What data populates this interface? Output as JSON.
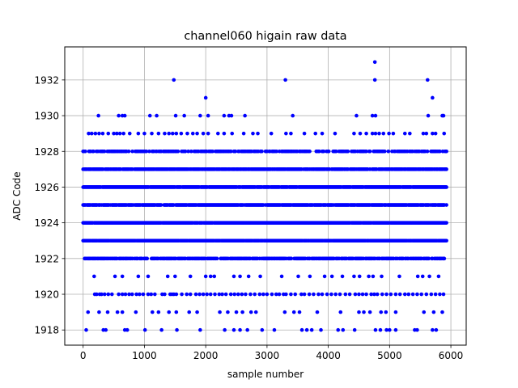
{
  "chart_data": {
    "type": "scatter",
    "title": "channel060 higain raw data",
    "xlabel": "sample number",
    "ylabel": "ADC Code",
    "xlim": [
      -300,
      6250
    ],
    "ylim": [
      1917.15,
      1933.85
    ],
    "x_ticks": [
      0,
      1000,
      2000,
      3000,
      4000,
      5000,
      6000
    ],
    "y_ticks": [
      1918,
      1920,
      1922,
      1924,
      1926,
      1928,
      1930,
      1932
    ],
    "grid": true,
    "marker_color": "#0000ff",
    "x_range": [
      0,
      5930
    ],
    "dense_levels": [
      {
        "y": 1922,
        "density": 0.7
      },
      {
        "y": 1923,
        "density": 0.95
      },
      {
        "y": 1924,
        "density": 0.98
      },
      {
        "y": 1925,
        "density": 0.92
      },
      {
        "y": 1926,
        "density": 0.96
      },
      {
        "y": 1927,
        "density": 0.85
      },
      {
        "y": 1928,
        "density": 0.55
      }
    ],
    "sparse_points": [
      {
        "y": 1918,
        "x": [
          50,
          330,
          370,
          680,
          720,
          1010,
          1280,
          1530,
          1910,
          2310,
          2460,
          2560,
          2680,
          2920,
          3120,
          3570,
          3650,
          3730,
          3880,
          4160,
          4240,
          4430,
          4770,
          4850,
          4950,
          5000,
          5100,
          5410,
          5450,
          5700,
          5760
        ]
      },
      {
        "y": 1919,
        "x": [
          80,
          260,
          400,
          560,
          640,
          860,
          1130,
          1230,
          1400,
          1520,
          1730,
          1860,
          2230,
          2360,
          2500,
          2600,
          2740,
          2820,
          3290,
          3440,
          3530,
          3820,
          4200,
          4500,
          4580,
          4680,
          4860,
          4940,
          5100,
          5560,
          5720,
          5860
        ]
      },
      {
        "y": 1920,
        "x": [
          190,
          220,
          270,
          300,
          350,
          410,
          470,
          580,
          640,
          690,
          750,
          800,
          870,
          920,
          980,
          1060,
          1110,
          1170,
          1290,
          1330,
          1420,
          1450,
          1480,
          1520,
          1610,
          1690,
          1750,
          1840,
          1900,
          1960,
          2020,
          2080,
          2150,
          2220,
          2270,
          2330,
          2410,
          2470,
          2530,
          2590,
          2650,
          2730,
          2800,
          2880,
          2940,
          3000,
          3080,
          3150,
          3200,
          3270,
          3310,
          3390,
          3460,
          3560,
          3610,
          3690,
          3760,
          3840,
          3900,
          3980,
          4050,
          4120,
          4190,
          4280,
          4350,
          4440,
          4500,
          4560,
          4620,
          4700,
          4750,
          4800,
          4880,
          4950,
          5020,
          5100,
          5170,
          5250,
          5310,
          5380,
          5450,
          5520,
          5600,
          5680,
          5750,
          5820,
          5880
        ]
      },
      {
        "y": 1921,
        "x": [
          180,
          520,
          640,
          900,
          1060,
          1380,
          1500,
          1750,
          2000,
          2080,
          2140,
          2460,
          2560,
          2700,
          2890,
          3240,
          3510,
          3700,
          3940,
          4060,
          4230,
          4420,
          4510,
          4660,
          4730,
          4870,
          5160,
          5460,
          5540,
          5650,
          5800
        ]
      },
      {
        "y": 1929,
        "x": [
          90,
          140,
          200,
          260,
          320,
          410,
          500,
          550,
          600,
          660,
          760,
          900,
          1000,
          1120,
          1230,
          1330,
          1400,
          1460,
          1520,
          1600,
          1700,
          1790,
          1860,
          1960,
          2040,
          2200,
          2300,
          2430,
          2620,
          2770,
          2850,
          3070,
          3310,
          3390,
          3610,
          3790,
          3900,
          4110,
          4420,
          4520,
          4620,
          4720,
          4770,
          4830,
          4900,
          4990,
          5060,
          5250,
          5330,
          5550,
          5600,
          5700,
          5750,
          5890
        ]
      },
      {
        "y": 1930,
        "x": [
          250,
          580,
          640,
          680,
          1090,
          1200,
          1510,
          1650,
          1910,
          2040,
          2300,
          2380,
          2420,
          2640,
          3420,
          4460,
          4720,
          4770,
          5630,
          5860,
          5880
        ]
      },
      {
        "y": 1931,
        "x": [
          2000,
          5700
        ]
      },
      {
        "y": 1932,
        "x": [
          1480,
          3300,
          4760,
          5620
        ]
      },
      {
        "y": 1933,
        "x": [
          4760
        ]
      }
    ]
  }
}
